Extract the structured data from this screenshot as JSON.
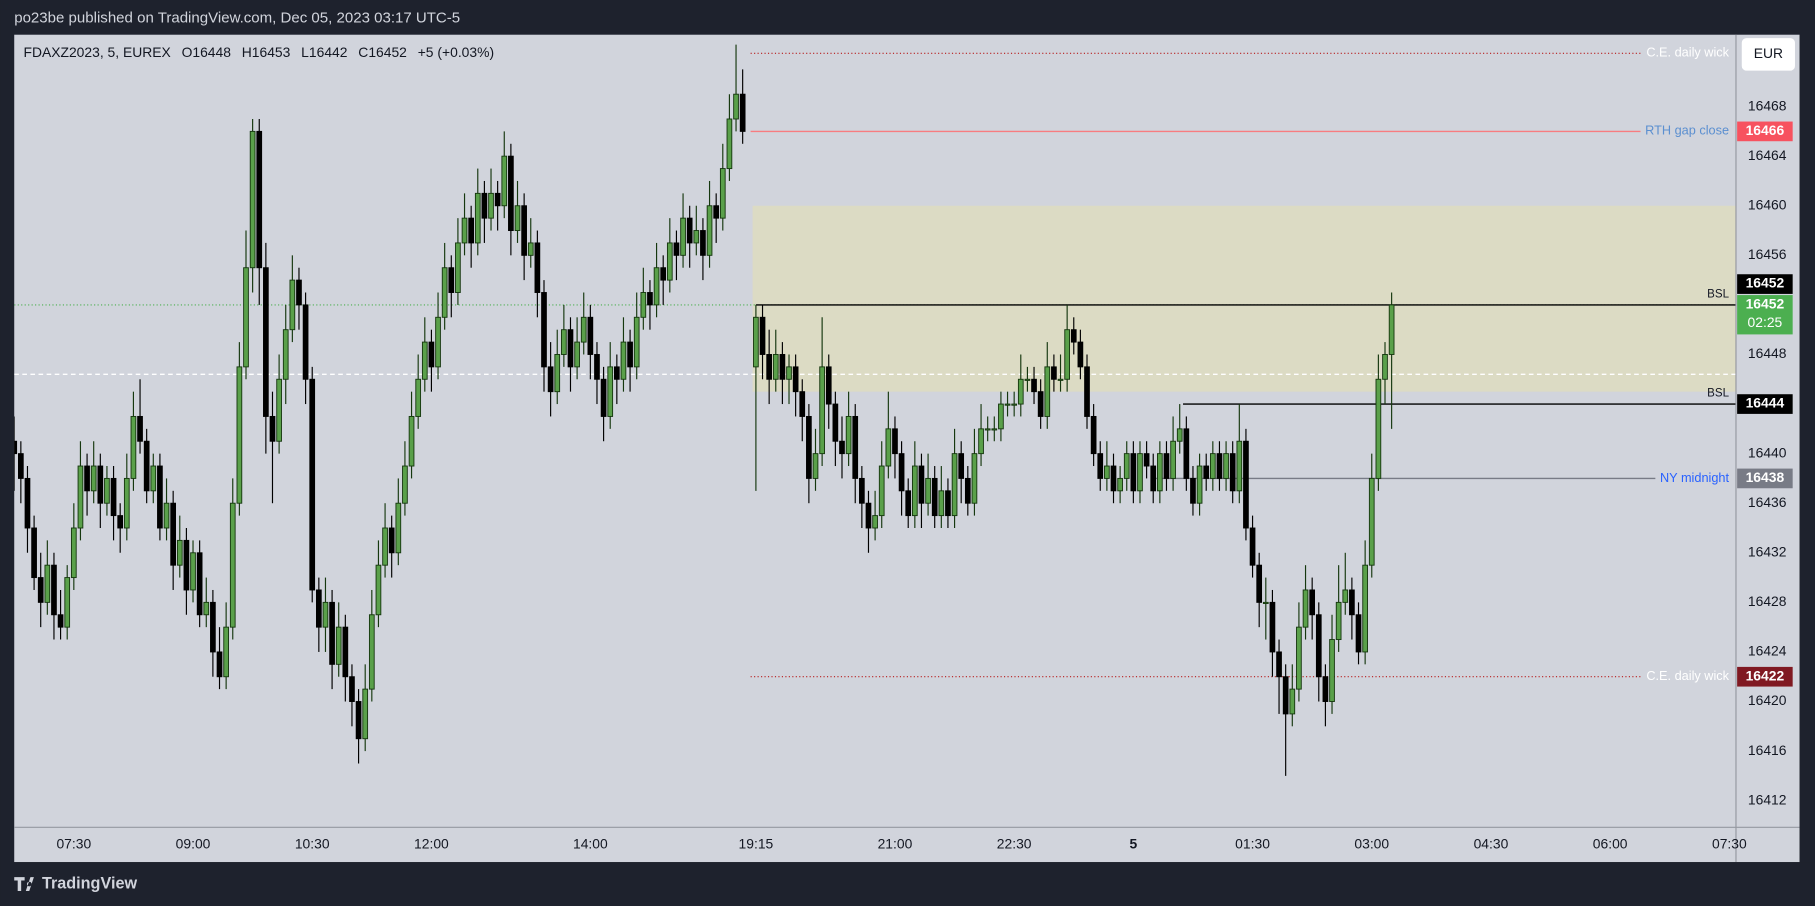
{
  "page": {
    "header": "po23be published on TradingView.com, Dec 05, 2023 03:17 UTC-5",
    "brand": "TradingView"
  },
  "chart_data": {
    "type": "candlestick",
    "symbol": "FDAXZ2023, 5, EUREX",
    "ohlc_labels": [
      "O16448",
      "H16453",
      "L16442",
      "C16452"
    ],
    "change": "+5 (+0.03%)",
    "currency": "EUR",
    "countdown": "02:25",
    "up_color": "#5aa04a",
    "up_border": "#16380f",
    "down_color": "#000000",
    "xlim": [
      0,
      260
    ],
    "ylim": [
      16409.85,
      16473.8
    ],
    "yticks": [
      16412,
      16416,
      16420,
      16424,
      16428,
      16432,
      16436,
      16440,
      16448,
      16456,
      16460,
      16464,
      16468
    ],
    "xticks": [
      {
        "value": 9,
        "label": "07:30"
      },
      {
        "value": 27,
        "label": "09:00"
      },
      {
        "value": 45,
        "label": "10:30"
      },
      {
        "value": 63,
        "label": "12:00"
      },
      {
        "value": 87,
        "label": "14:00"
      },
      {
        "value": 112,
        "label": "19:15"
      },
      {
        "value": 133,
        "label": "21:00"
      },
      {
        "value": 151,
        "label": "22:30"
      },
      {
        "value": 169,
        "label": "5"
      },
      {
        "value": 187,
        "label": "01:30"
      },
      {
        "value": 205,
        "label": "03:00"
      },
      {
        "value": 223,
        "label": "04:30"
      },
      {
        "value": 241,
        "label": "06:00"
      },
      {
        "value": 259,
        "label": "07:30"
      }
    ],
    "zone": {
      "low": 16445,
      "high": 16460,
      "xstart": 111.5,
      "color": "#dcdbc4"
    },
    "dashed_line": 16446.4,
    "levels": [
      {
        "label": "C.E. daily wick",
        "value": 16472.3,
        "xstart": 111.2,
        "color": "#b71c1c",
        "style": "dotted",
        "label_color": "#ffffff"
      },
      {
        "label": "RTH gap close",
        "value": 16466,
        "xstart": 111.2,
        "color": "#f77c80",
        "style": "solid",
        "label_color": "#5b8fd0",
        "tag_color": "#f7525f"
      },
      {
        "label": "BSL",
        "value": 16452,
        "xstart": 112,
        "color": "#000000",
        "style": "solid",
        "label_color": "#131722",
        "label_pos": "above",
        "tag_color": "#000000"
      },
      {
        "label": "BSL",
        "value": 16444,
        "xstart": 176.5,
        "color": "#000000",
        "style": "solid",
        "label_color": "#131722",
        "label_pos": "above",
        "tag_color": "#000000"
      },
      {
        "label": "NY midnight",
        "value": 16438,
        "xstart": 172,
        "color": "#787b86",
        "style": "solid",
        "label_color": "#2962ff",
        "tag_color": "#787b86"
      },
      {
        "label": "C.E. daily wick",
        "value": 16422,
        "xstart": 111.2,
        "color": "#b71c1c",
        "style": "dotted",
        "label_color": "#ffffff",
        "tag_color": "#801922"
      }
    ],
    "candles": [
      [
        16441,
        16443,
        16437,
        16440
      ],
      [
        16440,
        16441,
        16436,
        16438
      ],
      [
        16438,
        16439,
        16432,
        16434
      ],
      [
        16434,
        16435,
        16429,
        16430
      ],
      [
        16430,
        16432,
        16426,
        16428
      ],
      [
        16428,
        16433,
        16427,
        16431
      ],
      [
        16431,
        16432,
        16425,
        16427
      ],
      [
        16427,
        16429,
        16425,
        16426
      ],
      [
        16426,
        16431,
        16425,
        16430
      ],
      [
        16430,
        16436,
        16429,
        16434
      ],
      [
        16434,
        16441,
        16433,
        16439
      ],
      [
        16439,
        16440,
        16435,
        16437
      ],
      [
        16437,
        16441,
        16436,
        16439
      ],
      [
        16439,
        16440,
        16434,
        16436
      ],
      [
        16436,
        16439,
        16435,
        16438
      ],
      [
        16438,
        16439,
        16433,
        16435
      ],
      [
        16435,
        16436,
        16432,
        16434
      ],
      [
        16434,
        16440,
        16433,
        16438
      ],
      [
        16438,
        16445,
        16437,
        16443
      ],
      [
        16443,
        16446,
        16440,
        16441
      ],
      [
        16441,
        16442,
        16436,
        16437
      ],
      [
        16437,
        16440,
        16436,
        16439
      ],
      [
        16439,
        16440,
        16433,
        16434
      ],
      [
        16434,
        16438,
        16433,
        16436
      ],
      [
        16436,
        16437,
        16429,
        16431
      ],
      [
        16431,
        16435,
        16430,
        16433
      ],
      [
        16433,
        16434,
        16427,
        16429
      ],
      [
        16429,
        16433,
        16428,
        16432
      ],
      [
        16432,
        16433,
        16426,
        16427
      ],
      [
        16427,
        16430,
        16426,
        16428
      ],
      [
        16428,
        16429,
        16422,
        16424
      ],
      [
        16424,
        16426,
        16421,
        16422
      ],
      [
        16422,
        16428,
        16421,
        16426
      ],
      [
        16426,
        16438,
        16425,
        16436
      ],
      [
        16436,
        16449,
        16435,
        16447
      ],
      [
        16447,
        16458,
        16446,
        16455
      ],
      [
        16455,
        16467,
        16453,
        16466
      ],
      [
        16466,
        16467,
        16452,
        16455
      ],
      [
        16455,
        16457,
        16440,
        16443
      ],
      [
        16443,
        16445,
        16436,
        16441
      ],
      [
        16441,
        16448,
        16440,
        16446
      ],
      [
        16446,
        16452,
        16444,
        16450
      ],
      [
        16450,
        16456,
        16449,
        16454
      ],
      [
        16454,
        16455,
        16450,
        16452
      ],
      [
        16452,
        16453,
        16444,
        16446
      ],
      [
        16446,
        16447,
        16428,
        16429
      ],
      [
        16429,
        16430,
        16424,
        16426
      ],
      [
        16426,
        16430,
        16424,
        16428
      ],
      [
        16428,
        16429,
        16421,
        16423
      ],
      [
        16423,
        16428,
        16422,
        16426
      ],
      [
        16426,
        16427,
        16420,
        16422
      ],
      [
        16422,
        16423,
        16418,
        16420
      ],
      [
        16420,
        16421,
        16415,
        16417
      ],
      [
        16417,
        16423,
        16416,
        16421
      ],
      [
        16421,
        16429,
        16420,
        16427
      ],
      [
        16427,
        16433,
        16426,
        16431
      ],
      [
        16431,
        16436,
        16430,
        16434
      ],
      [
        16434,
        16435,
        16430,
        16432
      ],
      [
        16432,
        16438,
        16431,
        16436
      ],
      [
        16436,
        16441,
        16435,
        16439
      ],
      [
        16439,
        16445,
        16438,
        16443
      ],
      [
        16443,
        16448,
        16442,
        16446
      ],
      [
        16446,
        16451,
        16445,
        16449
      ],
      [
        16449,
        16450,
        16445,
        16447
      ],
      [
        16447,
        16453,
        16446,
        16451
      ],
      [
        16451,
        16457,
        16450,
        16455
      ],
      [
        16455,
        16456,
        16451,
        16453
      ],
      [
        16453,
        16459,
        16452,
        16457
      ],
      [
        16457,
        16461,
        16456,
        16459
      ],
      [
        16459,
        16460,
        16455,
        16457
      ],
      [
        16457,
        16463,
        16456,
        16461
      ],
      [
        16461,
        16462,
        16457,
        16459
      ],
      [
        16459,
        16463,
        16458,
        16461
      ],
      [
        16461,
        16462,
        16458,
        16460
      ],
      [
        16460,
        16466,
        16459,
        16464
      ],
      [
        16464,
        16465,
        16456,
        16458
      ],
      [
        16458,
        16462,
        16457,
        16460
      ],
      [
        16460,
        16461,
        16454,
        16456
      ],
      [
        16456,
        16459,
        16455,
        16457
      ],
      [
        16457,
        16458,
        16451,
        16453
      ],
      [
        16453,
        16454,
        16445,
        16447
      ],
      [
        16447,
        16449,
        16443,
        16445
      ],
      [
        16445,
        16450,
        16444,
        16448
      ],
      [
        16448,
        16452,
        16447,
        16450
      ],
      [
        16450,
        16451,
        16445,
        16447
      ],
      [
        16447,
        16451,
        16446,
        16449
      ],
      [
        16449,
        16453,
        16448,
        16451
      ],
      [
        16451,
        16452,
        16446,
        16448
      ],
      [
        16448,
        16449,
        16444,
        16446
      ],
      [
        16446,
        16447,
        16441,
        16443
      ],
      [
        16443,
        16449,
        16442,
        16447
      ],
      [
        16447,
        16448,
        16444,
        16446
      ],
      [
        16446,
        16451,
        16445,
        16449
      ],
      [
        16449,
        16450,
        16445,
        16447
      ],
      [
        16447,
        16453,
        16446,
        16451
      ],
      [
        16451,
        16455,
        16450,
        16453
      ],
      [
        16453,
        16454,
        16450,
        16452
      ],
      [
        16452,
        16457,
        16451,
        16455
      ],
      [
        16455,
        16456,
        16452,
        16454
      ],
      [
        16454,
        16459,
        16453,
        16457
      ],
      [
        16457,
        16458,
        16454,
        16456
      ],
      [
        16456,
        16461,
        16455,
        16459
      ],
      [
        16459,
        16460,
        16455,
        16457
      ],
      [
        16457,
        16460,
        16456,
        16458
      ],
      [
        16458,
        16459,
        16454,
        16456
      ],
      [
        16456,
        16462,
        16455,
        16460
      ],
      [
        16460,
        16461,
        16457,
        16459
      ],
      [
        16459,
        16465,
        16458,
        16463
      ],
      [
        16463,
        16469,
        16462,
        16467
      ],
      [
        16467,
        16473,
        16466,
        16469
      ],
      [
        16469,
        16471,
        16465,
        16466
      ],
      null,
      [
        16447,
        16452,
        16437,
        16451
      ],
      [
        16451,
        16452,
        16446,
        16448
      ],
      [
        16448,
        16450,
        16444,
        16446
      ],
      [
        16446,
        16450,
        16445,
        16448
      ],
      [
        16448,
        16449,
        16444,
        16446
      ],
      [
        16446,
        16448,
        16444,
        16447
      ],
      [
        16447,
        16448,
        16443,
        16445
      ],
      [
        16445,
        16446,
        16441,
        16443
      ],
      [
        16443,
        16444,
        16436,
        16438
      ],
      [
        16438,
        16442,
        16437,
        16440
      ],
      [
        16440,
        16451,
        16439,
        16447
      ],
      [
        16447,
        16448,
        16442,
        16444
      ],
      [
        16444,
        16445,
        16439,
        16441
      ],
      [
        16441,
        16443,
        16438,
        16440
      ],
      [
        16440,
        16445,
        16439,
        16443
      ],
      [
        16443,
        16444,
        16436,
        16438
      ],
      [
        16438,
        16439,
        16434,
        16436
      ],
      [
        16436,
        16437,
        16432,
        16434
      ],
      [
        16434,
        16437,
        16433,
        16435
      ],
      [
        16435,
        16441,
        16434,
        16439
      ],
      [
        16439,
        16445,
        16438,
        16442
      ],
      [
        16442,
        16443,
        16438,
        16440
      ],
      [
        16440,
        16441,
        16435,
        16437
      ],
      [
        16437,
        16438,
        16434,
        16435
      ],
      [
        16435,
        16441,
        16434,
        16439
      ],
      [
        16439,
        16440,
        16434,
        16436
      ],
      [
        16436,
        16440,
        16435,
        16438
      ],
      [
        16438,
        16439,
        16434,
        16435
      ],
      [
        16435,
        16439,
        16434,
        16437
      ],
      [
        16437,
        16438,
        16434,
        16435
      ],
      [
        16435,
        16442,
        16434,
        16440
      ],
      [
        16440,
        16441,
        16436,
        16438
      ],
      [
        16438,
        16439,
        16435,
        16436
      ],
      [
        16436,
        16442,
        16435,
        16440
      ],
      [
        16440,
        16444,
        16439,
        16442
      ],
      [
        16442,
        16443,
        16441,
        16442
      ],
      [
        16442,
        16443,
        16441,
        16442
      ],
      [
        16442,
        16445,
        16441,
        16444
      ],
      [
        16444,
        16445,
        16443,
        16444
      ],
      [
        16444,
        16445,
        16443,
        16444
      ],
      [
        16444,
        16448,
        16443,
        16446
      ],
      [
        16446,
        16447,
        16445,
        16446
      ],
      [
        16446,
        16447,
        16444,
        16445
      ],
      [
        16445,
        16446,
        16442,
        16443
      ],
      [
        16443,
        16449,
        16442,
        16447
      ],
      [
        16447,
        16448,
        16445,
        16446
      ],
      [
        16446,
        16448,
        16445,
        16446
      ],
      [
        16446,
        16452,
        16445,
        16450
      ],
      [
        16450,
        16451,
        16448,
        16449
      ],
      [
        16449,
        16450,
        16446,
        16447
      ],
      [
        16447,
        16448,
        16442,
        16443
      ],
      [
        16443,
        16444,
        16439,
        16440
      ],
      [
        16440,
        16441,
        16437,
        16438
      ],
      [
        16438,
        16441,
        16437,
        16439
      ],
      [
        16439,
        16440,
        16436,
        16437
      ],
      [
        16437,
        16439,
        16436,
        16438
      ],
      [
        16438,
        16441,
        16437,
        16440
      ],
      [
        16440,
        16441,
        16436,
        16437
      ],
      [
        16437,
        16441,
        16436,
        16440
      ],
      [
        16440,
        16441,
        16438,
        16439
      ],
      [
        16439,
        16440,
        16436,
        16437
      ],
      [
        16437,
        16441,
        16436,
        16440
      ],
      [
        16440,
        16441,
        16437,
        16438
      ],
      [
        16438,
        16443,
        16437,
        16441
      ],
      [
        16441,
        16444,
        16440,
        16442
      ],
      [
        16442,
        16443,
        16437,
        16438
      ],
      [
        16438,
        16439,
        16435,
        16436
      ],
      [
        16436,
        16440,
        16435,
        16439
      ],
      [
        16439,
        16440,
        16437,
        16438
      ],
      [
        16438,
        16441,
        16437,
        16440
      ],
      [
        16440,
        16441,
        16437,
        16438
      ],
      [
        16438,
        16441,
        16437,
        16440
      ],
      [
        16440,
        16441,
        16436,
        16437
      ],
      [
        16437,
        16444,
        16436,
        16441
      ],
      [
        16441,
        16442,
        16433,
        16434
      ],
      [
        16434,
        16435,
        16430,
        16431
      ],
      [
        16431,
        16432,
        16426,
        16428
      ],
      [
        16428,
        16430,
        16425,
        16428
      ],
      [
        16428,
        16429,
        16422,
        16424
      ],
      [
        16424,
        16425,
        16419,
        16422
      ],
      [
        16422,
        16423,
        16414,
        16419
      ],
      [
        16419,
        16423,
        16418,
        16421
      ],
      [
        16421,
        16428,
        16420,
        16426
      ],
      [
        16426,
        16431,
        16425,
        16429
      ],
      [
        16429,
        16430,
        16425,
        16427
      ],
      [
        16427,
        16428,
        16420,
        16422
      ],
      [
        16422,
        16423,
        16418,
        16420
      ],
      [
        16420,
        16427,
        16419,
        16425
      ],
      [
        16425,
        16431,
        16424,
        16428
      ],
      [
        16428,
        16432,
        16427,
        16429
      ],
      [
        16429,
        16430,
        16425,
        16427
      ],
      [
        16427,
        16428,
        16423,
        16424
      ],
      [
        16424,
        16433,
        16423,
        16431
      ],
      [
        16431,
        16440,
        16430,
        16438
      ],
      [
        16438,
        16448,
        16437,
        16446
      ],
      [
        16446,
        16449,
        16444,
        16448
      ],
      [
        16448,
        16453,
        16442,
        16452
      ]
    ]
  }
}
